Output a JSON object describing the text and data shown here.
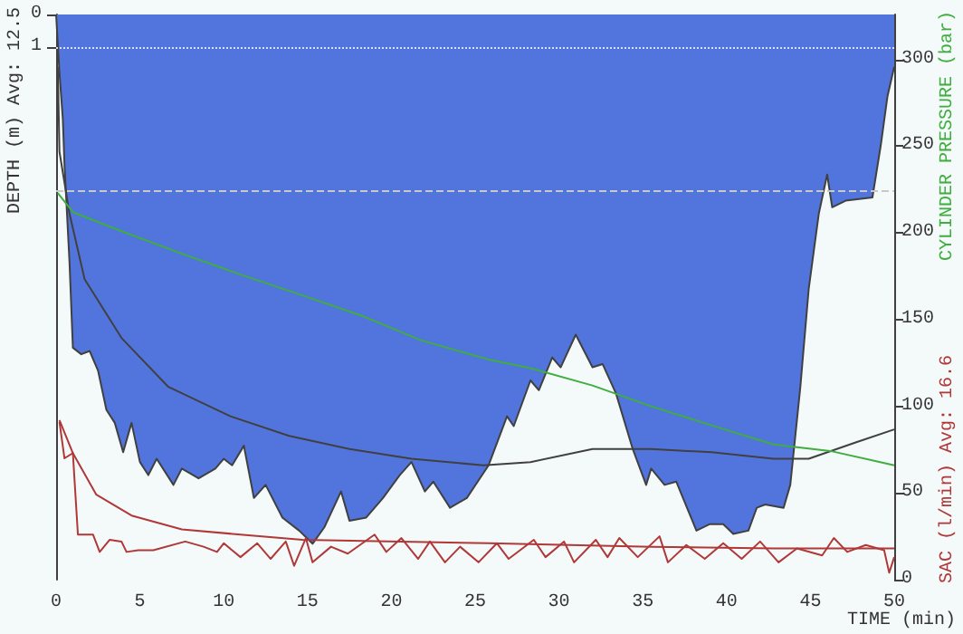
{
  "chart_data": {
    "type": "area",
    "xlabel": "TIME (min)",
    "ylabel": "DEPTH (m) Avg: 12.5",
    "y2label": "CYLINDER PRESSURE (bar)",
    "y3label": "SAC (l/min) Avg: 16.6",
    "xlim": [
      0,
      50
    ],
    "xticks": [
      0,
      5,
      10,
      15,
      20,
      25,
      30,
      35,
      40,
      45,
      50
    ],
    "ylim": [
      17.3,
      0
    ],
    "yticks": [
      0,
      1
    ],
    "y2lim": [
      0,
      326
    ],
    "y2ticks": [
      0,
      50,
      100,
      150,
      200,
      250,
      300
    ],
    "ref_lines": [
      {
        "axis": "y",
        "value": 1,
        "color": "#d8e0f8",
        "line_style": "dotted"
      },
      {
        "axis": "y",
        "value": 5.4,
        "color": "#c8c8c8",
        "line_style": "dashed"
      }
    ],
    "series": [
      {
        "color": "#5275dd",
        "x": [
          0,
          0.2,
          0.4,
          0.5,
          0.8,
          1.0,
          1.5,
          2.0,
          2.5,
          3.0,
          3.5,
          4.0,
          4.5,
          5.0,
          5.5,
          6.0,
          7.0,
          7.5,
          8.5,
          9.5,
          10.0,
          10.5,
          11.2,
          11.8,
          12.5,
          13.5,
          14.5,
          15.3,
          16.0,
          17.0,
          17.5,
          18.5,
          19.5,
          20.5,
          21.2,
          22.0,
          22.5,
          23.5,
          24.5,
          25.8,
          26.9,
          27.3,
          28.3,
          28.8,
          29.6,
          30.1,
          31.0,
          32.0,
          32.6,
          33.4,
          34.4,
          35.2,
          35.5,
          36.3,
          37.0,
          38.2,
          39.0,
          39.8,
          40.4,
          41.3,
          41.8,
          42.3,
          43.4,
          43.8,
          44.4,
          44.9,
          45.5,
          46.0,
          46.3,
          47.1,
          48.7,
          49.2,
          49.6,
          50
        ],
        "values": [
          0,
          1.8,
          3.2,
          4.6,
          7.6,
          10.2,
          10.4,
          10.3,
          10.9,
          12.1,
          12.5,
          13.4,
          12.5,
          13.7,
          14.1,
          13.6,
          14.4,
          13.9,
          14.2,
          13.9,
          13.6,
          13.8,
          13.2,
          14.8,
          14.4,
          15.4,
          15.8,
          16.2,
          15.7,
          14.6,
          15.5,
          15.4,
          14.8,
          14.1,
          13.7,
          14.6,
          14.3,
          15.1,
          14.8,
          13.8,
          12.3,
          12.6,
          11.2,
          11.5,
          10.5,
          10.8,
          9.8,
          10.8,
          10.7,
          11.6,
          13.3,
          14.4,
          13.9,
          14.4,
          14.3,
          15.8,
          15.6,
          15.6,
          15.9,
          15.8,
          15.1,
          15.0,
          15.1,
          14.4,
          11.4,
          8.4,
          6.1,
          4.9,
          5.9,
          5.7,
          5.6,
          4.0,
          2.5,
          1.6
        ]
      },
      {
        "type": "line",
        "color": "#404040",
        "x": [
          0.1,
          0.2,
          0.8,
          1.7,
          3.9,
          6.7,
          10.4,
          13.9,
          17.5,
          21.2,
          25.5,
          28.3,
          32.0,
          35.5,
          39.1,
          42.8,
          44.9,
          47.7,
          50
        ],
        "values": [
          1.6,
          4.2,
          6.1,
          8.1,
          9.9,
          11.4,
          12.3,
          12.9,
          13.3,
          13.6,
          13.8,
          13.7,
          13.3,
          13.3,
          13.4,
          13.6,
          13.6,
          13.1,
          12.7
        ]
      },
      {
        "type": "line",
        "axis": "y2",
        "color": "#3fae3f",
        "x": [
          0.1,
          1.0,
          3.9,
          7.5,
          11.0,
          14.7,
          18.3,
          21.8,
          25.8,
          28.3,
          32.0,
          35.5,
          39.1,
          42.8,
          46.3,
          50
        ],
        "values": [
          223,
          212,
          201,
          188,
          176,
          164,
          152,
          138,
          127,
          122,
          112,
          100,
          89,
          78,
          74,
          66
        ]
      },
      {
        "type": "line",
        "axis": "y2",
        "color": "#b03838",
        "x": [
          0.2,
          1.0,
          2.4,
          4.5,
          7.5,
          11,
          14.7,
          25.8,
          35.5,
          42.8,
          50
        ],
        "values": [
          92,
          73,
          49,
          37,
          29,
          26,
          23,
          21,
          19,
          18,
          18
        ]
      },
      {
        "type": "line",
        "axis": "y2",
        "color": "#b03838",
        "x": [
          0.2,
          0.5,
          1.0,
          1.3,
          2.2,
          2.6,
          3.2,
          3.9,
          4.2,
          4.9,
          5.8,
          7.7,
          8.8,
          9.6,
          10.0,
          11.0,
          12.0,
          12.8,
          13.7,
          14.2,
          14.9,
          15.3,
          16.4,
          17.4,
          19.0,
          19.7,
          20.6,
          21.6,
          22.3,
          23.2,
          24.1,
          25.2,
          26.3,
          27.0,
          28.5,
          29.2,
          30.3,
          30.9,
          32.2,
          32.9,
          33.6,
          34.7,
          36.0,
          36.5,
          37.6,
          38.7,
          39.8,
          40.9,
          42.0,
          43.1,
          44.2,
          45.7,
          46.4,
          47.2,
          48.3,
          49.4,
          49.7,
          50
        ],
        "values": [
          91,
          70,
          73,
          26,
          26,
          16,
          23,
          22,
          16,
          17,
          17,
          22,
          19,
          16,
          21,
          13,
          21,
          12,
          22,
          8,
          24,
          10,
          19,
          15,
          26,
          16,
          24,
          12,
          22,
          10,
          19,
          10,
          21,
          12,
          23,
          13,
          22,
          10,
          23,
          13,
          24,
          13,
          25,
          10,
          20,
          12,
          21,
          12,
          22,
          10,
          18,
          14,
          24,
          16,
          20,
          17,
          4,
          13
        ]
      }
    ]
  }
}
